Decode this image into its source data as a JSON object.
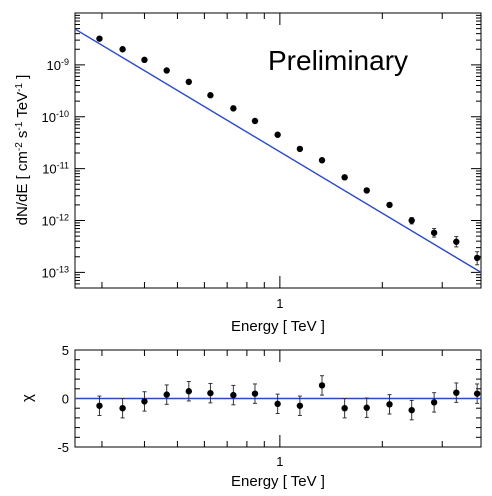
{
  "chart_data": [
    {
      "type": "scatter",
      "ylabel": "dN/dE  [ cm-2 s-1 TeV-1 ]",
      "xlabel": "Energy  [ TeV ]",
      "annotation": "Preliminary",
      "x_scale": "log",
      "y_scale": "log",
      "x_tick_labels": [
        {
          "value": 1,
          "label": "1"
        }
      ],
      "y_tick_labels": [
        {
          "value": 1e-09,
          "base": "10",
          "exp": "-9"
        },
        {
          "value": 1e-10,
          "base": "10",
          "exp": "-10"
        },
        {
          "value": 1e-11,
          "base": "10",
          "exp": "-11"
        },
        {
          "value": 1e-12,
          "base": "10",
          "exp": "-12"
        },
        {
          "value": 1e-13,
          "base": "10",
          "exp": "-13"
        }
      ],
      "ylim": [
        5e-14,
        1e-08
      ],
      "xlim": [
        0.25,
        3.9
      ],
      "series": [
        {
          "points": [
            [
              0.295,
              3.2e-09
            ],
            [
              0.345,
              2e-09
            ],
            [
              0.4,
              1.25e-09
            ],
            [
              0.465,
              7.8e-10
            ],
            [
              0.54,
              4.7e-10
            ],
            [
              0.625,
              2.6e-10
            ],
            [
              0.73,
              1.45e-10
            ],
            [
              0.845,
              8.3e-11
            ],
            [
              0.985,
              4.5e-11
            ],
            [
              1.145,
              2.4e-11
            ],
            [
              1.33,
              1.45e-11
            ],
            [
              1.55,
              6.8e-12
            ],
            [
              1.8,
              3.8e-12
            ],
            [
              2.1,
              2e-12
            ],
            [
              2.44,
              1e-12
            ],
            [
              2.84,
              5.8e-13
            ],
            [
              3.3,
              3.9e-13
            ],
            [
              3.8,
              1.9e-13
            ]
          ],
          "y_err_lo": [
            0,
            0,
            0,
            0,
            0,
            0,
            0,
            0,
            0,
            0,
            0,
            0,
            0,
            0,
            1.4e-13,
            1e-13,
            8e-14,
            5e-14
          ],
          "y_err_hi": [
            0,
            0,
            0,
            0,
            0,
            0,
            0,
            0,
            0,
            0,
            0,
            0,
            0,
            0,
            1.4e-13,
            1.2e-13,
            1e-13,
            6e-14
          ]
        }
      ],
      "fit": {
        "color": "#2b48c4",
        "points": [
          [
            0.25,
            4.9e-09
          ],
          [
            3.9,
            1e-13
          ]
        ]
      },
      "grid": false
    },
    {
      "type": "scatter",
      "ylabel": "χ",
      "xlabel": "Energy  [ TeV ]",
      "x_scale": "log",
      "x_tick_labels": [
        {
          "value": 1,
          "label": "1"
        }
      ],
      "y_tick_labels": [
        {
          "value": 5,
          "label": "5"
        },
        {
          "value": 0,
          "label": "0"
        },
        {
          "value": -5,
          "label": "-5"
        }
      ],
      "ylim": [
        -5,
        5
      ],
      "xlim": [
        0.25,
        3.9
      ],
      "zero_line": {
        "value": 0,
        "color": "#2b48c4"
      },
      "series": [
        {
          "points": [
            [
              0.295,
              -0.75
            ],
            [
              0.345,
              -1.0
            ],
            [
              0.4,
              -0.3
            ],
            [
              0.465,
              0.4
            ],
            [
              0.54,
              0.75
            ],
            [
              0.625,
              0.55
            ],
            [
              0.73,
              0.35
            ],
            [
              0.845,
              0.5
            ],
            [
              0.985,
              -0.55
            ],
            [
              1.145,
              -0.75
            ],
            [
              1.33,
              1.35
            ],
            [
              1.55,
              -1.0
            ],
            [
              1.8,
              -0.95
            ],
            [
              2.1,
              -0.6
            ],
            [
              2.44,
              -1.2
            ],
            [
              2.84,
              -0.4
            ],
            [
              3.3,
              0.6
            ],
            [
              3.8,
              0.5
            ]
          ],
          "y_err": [
            1.0,
            1.0,
            1.0,
            1.0,
            1.0,
            1.0,
            1.0,
            1.0,
            1.0,
            1.0,
            1.0,
            1.0,
            1.0,
            1.0,
            1.0,
            1.0,
            1.0,
            1.0
          ]
        }
      ],
      "grid": false
    }
  ]
}
